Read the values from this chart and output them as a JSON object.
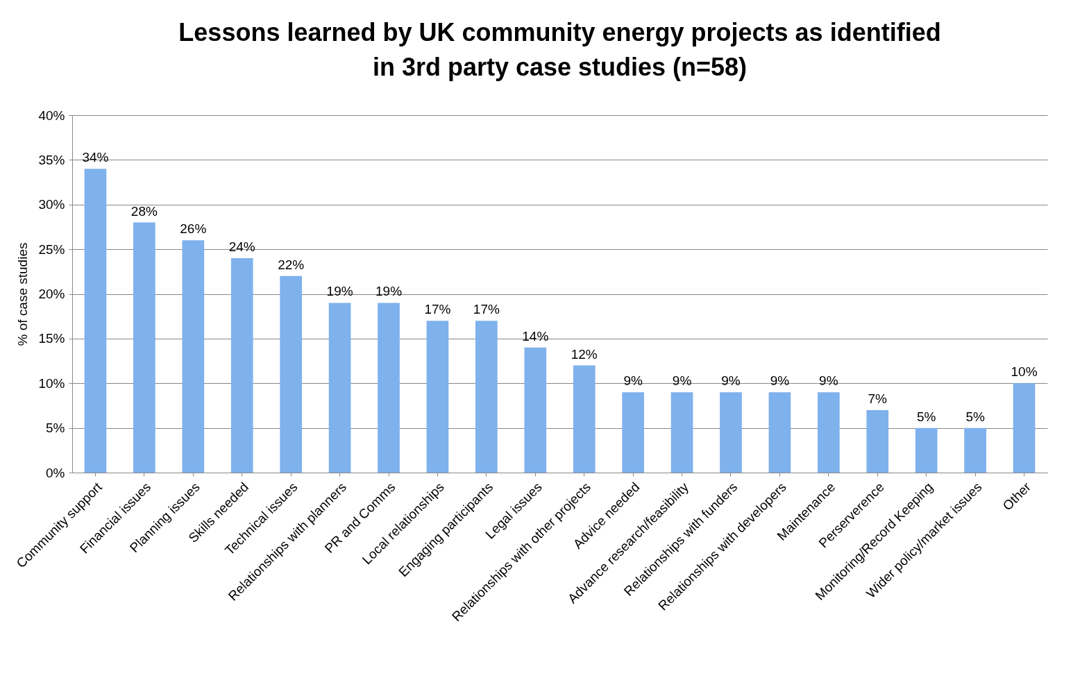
{
  "chart_data": {
    "type": "bar",
    "title": "Lessons learned by UK community energy projects as identified in 3rd party case studies (n=58)",
    "ylabel": "% of case studies",
    "categories": [
      "Community support",
      "Financial issues",
      "Planning issues",
      "Skills needed",
      "Technical issues",
      "Relationships with planners",
      "PR and Comms",
      "Local relationships",
      "Engaging participants",
      "Legal issues",
      "Relationships with other projects",
      "Advice needed",
      "Advance research/feasibility",
      "Relationships with funders",
      "Relationships with developers",
      "Maintenance",
      "Perserverence",
      "Monitoring/Record Keeping",
      "Wider policy/market issues",
      "Other"
    ],
    "values": [
      34,
      28,
      26,
      24,
      22,
      19,
      19,
      17,
      17,
      14,
      12,
      9,
      9,
      9,
      9,
      9,
      7,
      5,
      5,
      10
    ],
    "value_labels": [
      "34%",
      "28%",
      "26%",
      "24%",
      "22%",
      "19%",
      "19%",
      "17%",
      "17%",
      "14%",
      "12%",
      "9%",
      "9%",
      "9%",
      "9%",
      "9%",
      "7%",
      "5%",
      "5%",
      "10%"
    ],
    "color": "#7fb1ec",
    "ylim": [
      0,
      40
    ],
    "yticks": [
      {
        "value": 0,
        "label": "0%"
      },
      {
        "value": 5,
        "label": "5%"
      },
      {
        "value": 10,
        "label": "10%"
      },
      {
        "value": 15,
        "label": "15%"
      },
      {
        "value": 20,
        "label": "20%"
      },
      {
        "value": 25,
        "label": "25%"
      },
      {
        "value": 30,
        "label": "30%"
      },
      {
        "value": 35,
        "label": "35%"
      },
      {
        "value": 40,
        "label": "40%"
      }
    ],
    "grid": "y"
  }
}
